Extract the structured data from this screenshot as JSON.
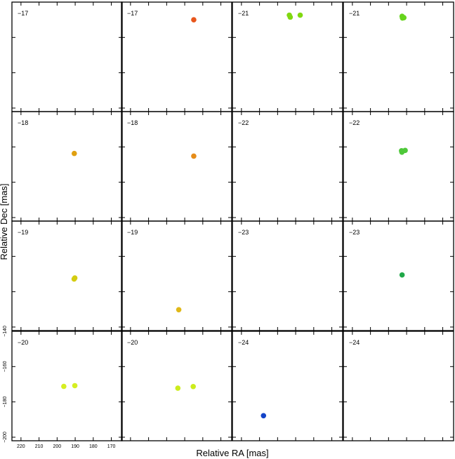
{
  "chart_data": {
    "type": "scatter",
    "title": "",
    "xlabel": "Relative RA [mas]",
    "ylabel": "Relative Dec [mas]",
    "xlim": [
      225,
      164
    ],
    "ylim": [
      -202,
      -140
    ],
    "grid": false,
    "layout": "4x4 panel grid",
    "x_ticks": [
      220,
      210,
      200,
      190,
      180,
      170
    ],
    "y_ticks": [
      -140,
      -160,
      -180,
      -200
    ],
    "panels": [
      {
        "label": "−17",
        "points": []
      },
      {
        "label": "−17",
        "points": [
          {
            "x": 185,
            "y": -150,
            "color": "#e8561c"
          }
        ]
      },
      {
        "label": "−21",
        "points": [
          {
            "x": 193.5,
            "y": -147.4,
            "color": "#80d810"
          },
          {
            "x": 193,
            "y": -148.5,
            "color": "#80d810"
          },
          {
            "x": 187.5,
            "y": -147.4,
            "color": "#80d810"
          }
        ]
      },
      {
        "label": "−21",
        "points": [
          {
            "x": 192.5,
            "y": -148.0,
            "color": "#66d41c"
          },
          {
            "x": 191.5,
            "y": -148.8,
            "color": "#66d41c"
          },
          {
            "x": 192.3,
            "y": -149.0,
            "color": "#66d41c"
          }
        ]
      },
      {
        "label": "−18",
        "points": [
          {
            "x": 190.5,
            "y": -163.7,
            "color": "#e0a010"
          }
        ]
      },
      {
        "label": "−18",
        "points": [
          {
            "x": 185,
            "y": -165.2,
            "color": "#e68c18"
          }
        ]
      },
      {
        "label": "−22",
        "points": []
      },
      {
        "label": "−22",
        "points": [
          {
            "x": 192.8,
            "y": -162.2,
            "color": "#4ec83a"
          },
          {
            "x": 190.8,
            "y": -162.0,
            "color": "#4ec83a"
          },
          {
            "x": 192.6,
            "y": -163.0,
            "color": "#4ec83a"
          }
        ]
      },
      {
        "label": "−19",
        "points": [
          {
            "x": 190.2,
            "y": -172.2,
            "color": "#d4cc10"
          },
          {
            "x": 190.6,
            "y": -172.8,
            "color": "#d4cc10"
          }
        ]
      },
      {
        "label": "−19",
        "points": [
          {
            "x": 193.3,
            "y": -190.2,
            "color": "#e0b818"
          }
        ]
      },
      {
        "label": "−23",
        "points": []
      },
      {
        "label": "−23",
        "points": [
          {
            "x": 192.5,
            "y": -170.5,
            "color": "#20a848"
          }
        ]
      },
      {
        "label": "−20",
        "points": [
          {
            "x": 196.3,
            "y": -171.2,
            "color": "#d6ee22"
          },
          {
            "x": 190.2,
            "y": -170.8,
            "color": "#d6ee22"
          }
        ]
      },
      {
        "label": "−20",
        "points": [
          {
            "x": 193.8,
            "y": -172.2,
            "color": "#ccec1c"
          },
          {
            "x": 185.3,
            "y": -171.3,
            "color": "#ccec1c"
          }
        ]
      },
      {
        "label": "−24",
        "points": [
          {
            "x": 207.8,
            "y": -187.8,
            "color": "#1444c8"
          }
        ]
      },
      {
        "label": "−24",
        "points": []
      }
    ]
  }
}
